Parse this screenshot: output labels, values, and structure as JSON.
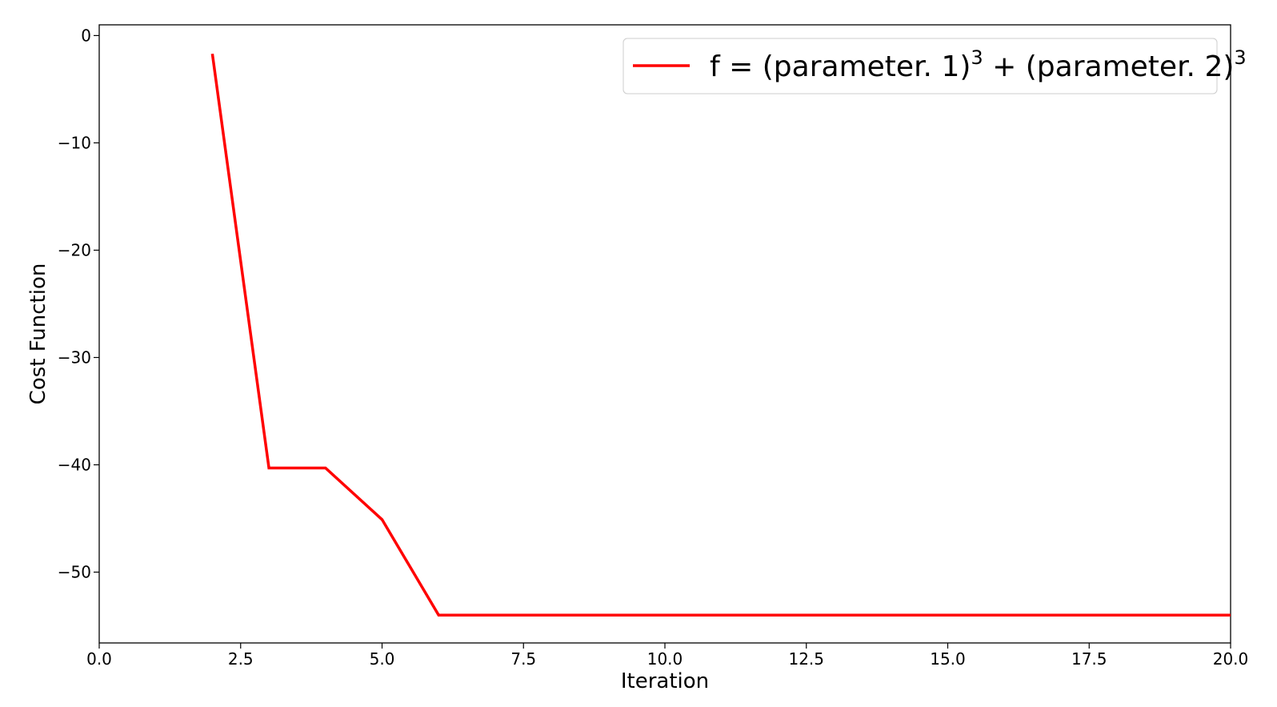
{
  "chart_data": {
    "type": "line",
    "title": "",
    "xlabel": "Iteration",
    "ylabel": "Cost  Function",
    "xlim": [
      0,
      20
    ],
    "ylim": [
      -56.6,
      1
    ],
    "x_ticks": [
      0,
      2.5,
      5,
      7.5,
      10,
      12.5,
      15,
      17.5,
      20
    ],
    "x_tick_labels": [
      "0.0",
      "2.5",
      "5.0",
      "7.5",
      "10.0",
      "12.5",
      "15.0",
      "17.5",
      "20.0"
    ],
    "y_ticks": [
      0,
      -10,
      -20,
      -30,
      -40,
      -50
    ],
    "y_tick_labels": [
      "0",
      "−10",
      "−20",
      "−30",
      "−40",
      "−50"
    ],
    "grid": false,
    "legend_position": "top-right",
    "series": [
      {
        "name": "f = (parameter. 1)^3 + (parameter. 2)^3",
        "legend_parts": {
          "lhs": "f",
          "eq": "=",
          "term1": "(parameter. 1)",
          "plus": "+",
          "term2": "(parameter. 2)",
          "exp": "3"
        },
        "color": "#ff0000",
        "x": [
          2,
          3,
          4,
          5,
          6,
          7,
          8,
          9,
          10,
          11,
          12,
          13,
          14,
          15,
          16,
          17,
          18,
          19,
          20
        ],
        "y": [
          -1.7,
          -40.3,
          -40.3,
          -45.1,
          -54,
          -54,
          -54,
          -54,
          -54,
          -54,
          -54,
          -54,
          -54,
          -54,
          -54,
          -54,
          -54,
          -54,
          -54
        ]
      }
    ]
  }
}
